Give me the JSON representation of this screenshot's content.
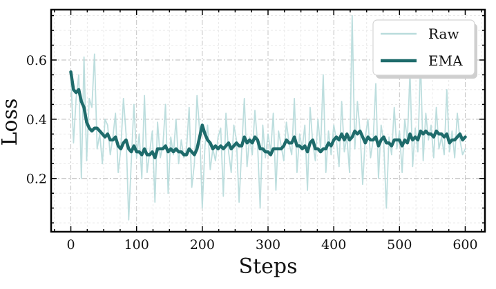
{
  "chart_data": {
    "type": "line",
    "xlabel": "Steps",
    "ylabel": "Loss",
    "xlim": [
      -30,
      630
    ],
    "ylim": [
      0.02,
      0.77
    ],
    "x_ticks": [
      0,
      100,
      200,
      300,
      400,
      500,
      600
    ],
    "x_tick_labels": [
      "0",
      "100",
      "200",
      "300",
      "400",
      "500",
      "600"
    ],
    "y_ticks": [
      0.2,
      0.4,
      0.6
    ],
    "y_tick_labels": [
      "0.2",
      "0.4",
      "0.6"
    ],
    "grid": true,
    "legend_position": "top-right",
    "series": [
      {
        "name": "Raw",
        "color": "#b9dcdc",
        "x": [
          0,
          4,
          8,
          12,
          16,
          20,
          24,
          28,
          32,
          36,
          40,
          44,
          48,
          52,
          56,
          60,
          64,
          68,
          72,
          76,
          80,
          84,
          88,
          92,
          96,
          100,
          104,
          108,
          112,
          116,
          120,
          124,
          128,
          132,
          136,
          140,
          144,
          148,
          152,
          156,
          160,
          164,
          168,
          172,
          176,
          180,
          184,
          188,
          192,
          196,
          200,
          204,
          208,
          212,
          216,
          220,
          224,
          228,
          232,
          236,
          240,
          244,
          248,
          252,
          256,
          260,
          264,
          268,
          272,
          276,
          280,
          284,
          288,
          292,
          296,
          300,
          304,
          308,
          312,
          316,
          320,
          324,
          328,
          332,
          336,
          340,
          344,
          348,
          352,
          356,
          360,
          364,
          368,
          372,
          376,
          380,
          384,
          388,
          392,
          396,
          400,
          404,
          408,
          412,
          416,
          420,
          424,
          428,
          432,
          436,
          440,
          444,
          448,
          452,
          456,
          460,
          464,
          468,
          472,
          476,
          480,
          484,
          488,
          492,
          496,
          500,
          504,
          508,
          512,
          516,
          520,
          524,
          528,
          532,
          536,
          540,
          544,
          548,
          552,
          556,
          560,
          564,
          568,
          572,
          576,
          580,
          584,
          588,
          592,
          596,
          600
        ],
        "values": [
          0.56,
          0.32,
          0.47,
          0.55,
          0.2,
          0.61,
          0.26,
          0.47,
          0.44,
          0.62,
          0.3,
          0.35,
          0.25,
          0.4,
          0.38,
          0.28,
          0.34,
          0.42,
          0.22,
          0.3,
          0.47,
          0.35,
          0.06,
          0.26,
          0.45,
          0.27,
          0.35,
          0.2,
          0.48,
          0.22,
          0.29,
          0.36,
          0.12,
          0.39,
          0.27,
          0.31,
          0.45,
          0.15,
          0.34,
          0.28,
          0.4,
          0.25,
          0.33,
          0.27,
          0.3,
          0.44,
          0.17,
          0.25,
          0.48,
          0.36,
          0.1,
          0.31,
          0.38,
          0.23,
          0.3,
          0.26,
          0.34,
          0.37,
          0.14,
          0.42,
          0.29,
          0.22,
          0.38,
          0.33,
          0.12,
          0.3,
          0.47,
          0.24,
          0.34,
          0.28,
          0.43,
          0.32,
          0.1,
          0.38,
          0.27,
          0.35,
          0.29,
          0.42,
          0.16,
          0.36,
          0.31,
          0.26,
          0.39,
          0.32,
          0.28,
          0.47,
          0.22,
          0.35,
          0.3,
          0.38,
          0.16,
          0.44,
          0.32,
          0.26,
          0.4,
          0.3,
          0.55,
          0.22,
          0.36,
          0.28,
          0.38,
          0.33,
          0.24,
          0.46,
          0.29,
          0.34,
          0.22,
          0.75,
          0.3,
          0.46,
          0.36,
          0.18,
          0.34,
          0.4,
          0.27,
          0.33,
          0.52,
          0.2,
          0.38,
          0.32,
          0.1,
          0.34,
          0.28,
          0.44,
          0.3,
          0.36,
          0.22,
          0.4,
          0.33,
          0.56,
          0.24,
          0.37,
          0.29,
          0.6,
          0.26,
          0.42,
          0.33,
          0.38,
          0.27,
          0.44,
          0.3,
          0.34,
          0.28,
          0.5,
          0.29,
          0.36,
          0.27,
          0.42,
          0.33,
          0.28,
          0.3
        ]
      },
      {
        "name": "EMA",
        "color": "#1e6b6b",
        "x": [
          0,
          4,
          8,
          12,
          16,
          20,
          24,
          28,
          32,
          36,
          40,
          44,
          48,
          52,
          56,
          60,
          64,
          68,
          72,
          76,
          80,
          84,
          88,
          92,
          96,
          100,
          104,
          108,
          112,
          116,
          120,
          124,
          128,
          132,
          136,
          140,
          144,
          148,
          152,
          156,
          160,
          164,
          168,
          172,
          176,
          180,
          184,
          188,
          192,
          196,
          200,
          204,
          208,
          212,
          216,
          220,
          224,
          228,
          232,
          236,
          240,
          244,
          248,
          252,
          256,
          260,
          264,
          268,
          272,
          276,
          280,
          284,
          288,
          292,
          296,
          300,
          304,
          308,
          312,
          316,
          320,
          324,
          328,
          332,
          336,
          340,
          344,
          348,
          352,
          356,
          360,
          364,
          368,
          372,
          376,
          380,
          384,
          388,
          392,
          396,
          400,
          404,
          408,
          412,
          416,
          420,
          424,
          428,
          432,
          436,
          440,
          444,
          448,
          452,
          456,
          460,
          464,
          468,
          472,
          476,
          480,
          484,
          488,
          492,
          496,
          500,
          504,
          508,
          512,
          516,
          520,
          524,
          528,
          532,
          536,
          540,
          544,
          548,
          552,
          556,
          560,
          564,
          568,
          572,
          576,
          580,
          584,
          588,
          592,
          596,
          600
        ],
        "values": [
          0.56,
          0.5,
          0.49,
          0.5,
          0.46,
          0.44,
          0.39,
          0.37,
          0.36,
          0.37,
          0.37,
          0.36,
          0.35,
          0.34,
          0.35,
          0.33,
          0.33,
          0.34,
          0.31,
          0.3,
          0.32,
          0.33,
          0.3,
          0.29,
          0.31,
          0.29,
          0.29,
          0.28,
          0.3,
          0.28,
          0.28,
          0.29,
          0.27,
          0.3,
          0.3,
          0.3,
          0.31,
          0.29,
          0.3,
          0.29,
          0.3,
          0.29,
          0.29,
          0.28,
          0.28,
          0.3,
          0.29,
          0.28,
          0.3,
          0.34,
          0.38,
          0.35,
          0.33,
          0.32,
          0.3,
          0.31,
          0.3,
          0.31,
          0.3,
          0.31,
          0.32,
          0.3,
          0.31,
          0.32,
          0.31,
          0.31,
          0.34,
          0.32,
          0.33,
          0.32,
          0.34,
          0.33,
          0.3,
          0.3,
          0.29,
          0.29,
          0.28,
          0.3,
          0.3,
          0.3,
          0.3,
          0.31,
          0.33,
          0.32,
          0.32,
          0.34,
          0.31,
          0.31,
          0.3,
          0.31,
          0.29,
          0.32,
          0.33,
          0.3,
          0.3,
          0.29,
          0.3,
          0.3,
          0.32,
          0.31,
          0.33,
          0.34,
          0.33,
          0.35,
          0.33,
          0.35,
          0.33,
          0.34,
          0.36,
          0.35,
          0.36,
          0.34,
          0.32,
          0.34,
          0.33,
          0.33,
          0.34,
          0.31,
          0.33,
          0.34,
          0.32,
          0.32,
          0.31,
          0.33,
          0.33,
          0.33,
          0.31,
          0.33,
          0.32,
          0.35,
          0.33,
          0.34,
          0.33,
          0.36,
          0.35,
          0.36,
          0.35,
          0.35,
          0.34,
          0.36,
          0.35,
          0.35,
          0.34,
          0.35,
          0.32,
          0.33,
          0.33,
          0.34,
          0.35,
          0.33,
          0.34
        ]
      }
    ]
  }
}
